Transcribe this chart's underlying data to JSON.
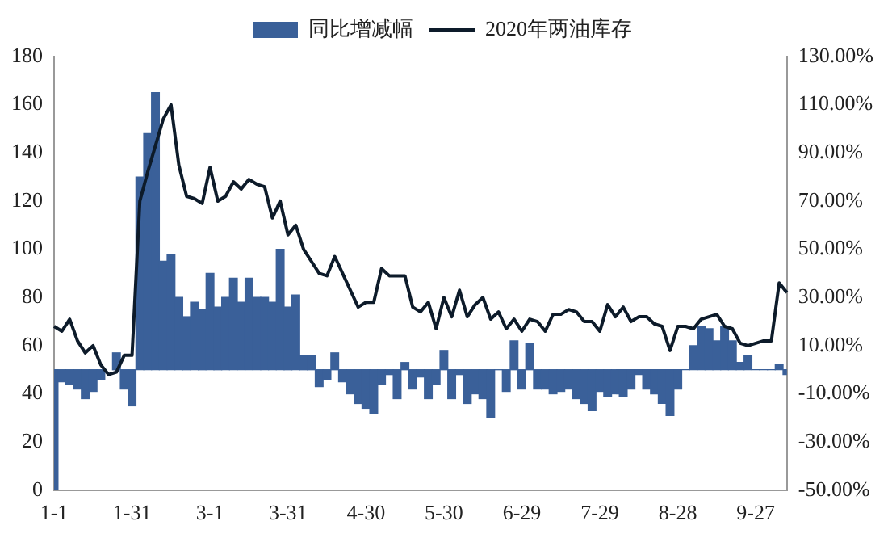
{
  "chart_data": {
    "type": "bar",
    "legend": "top",
    "grid": false,
    "categories": [
      "1-1",
      null,
      null,
      null,
      null,
      null,
      null,
      null,
      null,
      null,
      "1-31",
      null,
      null,
      null,
      null,
      null,
      null,
      null,
      null,
      null,
      "3-1",
      null,
      null,
      null,
      null,
      null,
      null,
      null,
      null,
      null,
      "3-31",
      null,
      null,
      null,
      null,
      null,
      null,
      null,
      null,
      null,
      "4-30",
      null,
      null,
      null,
      null,
      null,
      null,
      null,
      null,
      null,
      "5-30",
      null,
      null,
      null,
      null,
      null,
      null,
      null,
      null,
      null,
      "6-29",
      null,
      null,
      null,
      null,
      null,
      null,
      null,
      null,
      null,
      "7-29",
      null,
      null,
      null,
      null,
      null,
      null,
      null,
      null,
      null,
      "8-28",
      null,
      null,
      null,
      null,
      null,
      null,
      null,
      null,
      null,
      "9-27",
      null,
      null,
      null,
      null
    ],
    "series": [
      {
        "name": "同比增减幅",
        "axis": "y2",
        "color": "#3a6099",
        "values": [
          -50,
          -5,
          -6,
          -8,
          -12,
          -9,
          -4,
          null,
          7,
          -8,
          -15,
          80,
          98,
          115,
          45,
          48,
          30,
          22,
          28,
          25,
          40,
          26,
          30,
          38,
          28,
          38,
          30,
          30,
          28,
          50,
          26,
          31,
          6,
          6,
          -7,
          -4,
          7,
          -5,
          -10,
          -14,
          -16,
          -18,
          -6,
          -2,
          -12,
          3,
          -8,
          -3,
          -12,
          -6,
          8,
          -12,
          -2,
          -14,
          -10,
          -12,
          -20,
          0,
          -9,
          12,
          -8,
          11,
          -8,
          -8,
          -10,
          -9,
          -8,
          -12,
          -14,
          -17,
          -9,
          -11,
          -10,
          -11,
          -8,
          -2,
          -8,
          -10,
          -14,
          -19,
          -8,
          0,
          10,
          18,
          17,
          12,
          18,
          12,
          3,
          6,
          0,
          0,
          0,
          2,
          -2
        ]
      },
      {
        "name": "2020年两油库存",
        "type": "line",
        "axis": "y",
        "color": "#0d1b2a",
        "values": [
          68,
          66,
          71,
          62,
          57,
          60,
          52,
          48,
          49,
          56,
          56,
          120,
          132,
          143,
          154,
          160,
          135,
          122,
          121,
          119,
          134,
          120,
          122,
          128,
          125,
          129,
          127,
          126,
          113,
          120,
          106,
          110,
          100,
          95,
          90,
          89,
          97,
          90,
          83,
          76,
          78,
          78,
          92,
          89,
          89,
          89,
          76,
          74,
          78,
          67,
          80,
          72,
          83,
          72,
          77,
          80,
          71,
          74,
          67,
          71,
          66,
          71,
          70,
          66,
          73,
          73,
          75,
          74,
          70,
          70,
          66,
          77,
          72,
          76,
          70,
          72,
          72,
          69,
          68,
          58,
          68,
          68,
          67,
          71,
          72,
          73,
          68,
          67,
          61,
          60,
          61,
          62,
          62,
          86,
          82
        ]
      }
    ],
    "ylim": [
      0,
      180
    ],
    "yticks": [
      0,
      20,
      40,
      60,
      80,
      100,
      120,
      140,
      160,
      180
    ],
    "y2lim": [
      -50,
      130
    ],
    "y2ticks": [
      {
        "value": -50,
        "label": "-50.00%"
      },
      {
        "value": -30,
        "label": "-30.00%"
      },
      {
        "value": -10,
        "label": "-10.00%"
      },
      {
        "value": 10,
        "label": "10.00%"
      },
      {
        "value": 30,
        "label": "30.00%"
      },
      {
        "value": 50,
        "label": "50.00%"
      },
      {
        "value": 70,
        "label": "70.00%"
      },
      {
        "value": 90,
        "label": "90.00%"
      },
      {
        "value": 110,
        "label": "110.00%"
      },
      {
        "value": 130,
        "label": "130.00%"
      }
    ]
  }
}
